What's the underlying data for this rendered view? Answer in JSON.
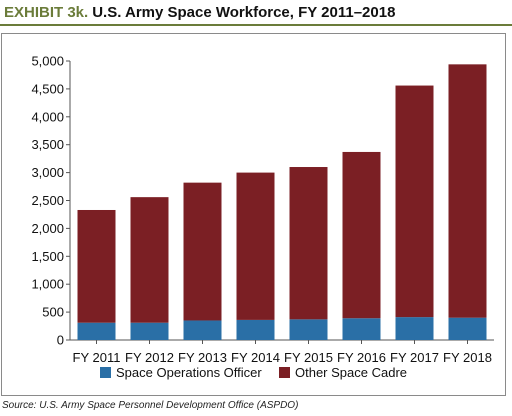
{
  "header": {
    "prefix": "EXHIBIT 3k.",
    "title": "U.S. Army Space Workforce, FY 2011–2018"
  },
  "source": "Source: U.S. Army Space Personnel Development Office (ASPDO)",
  "chart_data": {
    "type": "bar",
    "stacked": true,
    "categories": [
      "FY 2011",
      "FY 2012",
      "FY 2013",
      "FY 2014",
      "FY 2015",
      "FY 2016",
      "FY 2017",
      "FY 2018"
    ],
    "series": [
      {
        "name": "Space Operations Officer",
        "color": "#2a6fa6",
        "values": [
          310,
          310,
          350,
          360,
          370,
          390,
          410,
          400
        ]
      },
      {
        "name": "Other Space Cadre",
        "color": "#7b1f24",
        "values": [
          2020,
          2250,
          2470,
          2640,
          2730,
          2980,
          4150,
          4540
        ]
      }
    ],
    "ylim": [
      0,
      5000
    ],
    "yticks": [
      0,
      500,
      1000,
      1500,
      2000,
      2500,
      3000,
      3500,
      4000,
      4500,
      5000
    ],
    "ytick_labels": [
      "0",
      "500",
      "1,000",
      "1,500",
      "2,000",
      "2,500",
      "3,000",
      "3,500",
      "4,000",
      "4,500",
      "5,000"
    ],
    "grid": false,
    "legend_position": "bottom"
  }
}
